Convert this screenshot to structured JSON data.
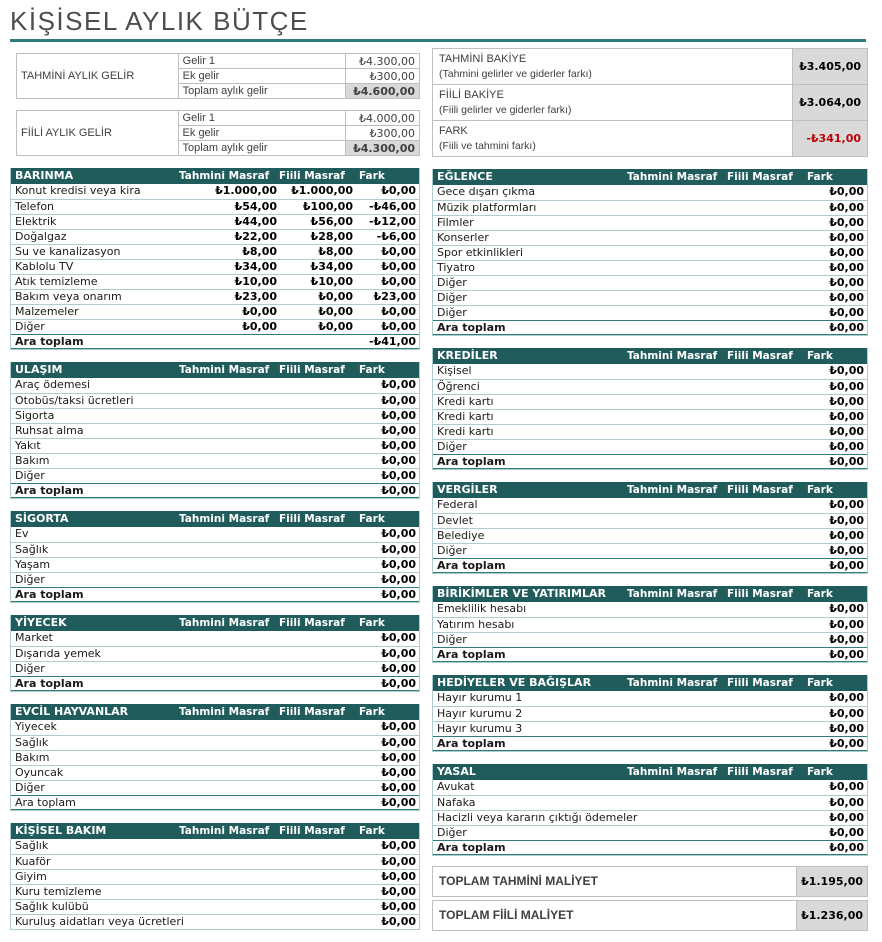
{
  "title": "KİŞİSEL AYLIK BÜTÇE",
  "colors": {
    "header_teal": "#215C5C",
    "accent_teal": "#2E7D7B",
    "row_border": "#AECDD0",
    "total_fill": "#D9D9D9",
    "negative_red": "#C00000"
  },
  "income_tables": [
    {
      "label": "TAHMİNİ AYLIK GELİR",
      "rows": [
        {
          "desc": "Gelir 1",
          "value": "₺4.300,00"
        },
        {
          "desc": "Ek gelir",
          "value": "₺300,00"
        }
      ],
      "total": {
        "desc": "Toplam aylık gelir",
        "value": "₺4.600,00"
      }
    },
    {
      "label": "FİİLİ AYLIK GELİR",
      "rows": [
        {
          "desc": "Gelir 1",
          "value": "₺4.000,00"
        },
        {
          "desc": "Ek gelir",
          "value": "₺300,00"
        }
      ],
      "total": {
        "desc": "Toplam aylık gelir",
        "value": "₺4.300,00"
      }
    }
  ],
  "balance_summary": [
    {
      "title": "TAHMİNİ BAKİYE",
      "subtitle": "(Tahmini gelirler ve giderler farkı)",
      "value": "₺3.405,00",
      "negative": false
    },
    {
      "title": "FİİLİ BAKİYE",
      "subtitle": "(Fiili gelirler ve giderler farkı)",
      "value": "₺3.064,00",
      "negative": false
    },
    {
      "title": "FARK",
      "subtitle": "(Fiili ve tahmini farkı)",
      "value": "-₺341,00",
      "negative": true
    }
  ],
  "expense_columns": {
    "estimated": "Tahmini Masraf",
    "actual": "Fiili Masraf",
    "difference": "Fark"
  },
  "subtotal_label": "Ara toplam",
  "expense_tables_left": [
    {
      "name": "BARINMA",
      "rows": [
        [
          "Konut kredisi veya kira",
          "₺1.000,00",
          "₺1.000,00",
          "₺0,00"
        ],
        [
          "Telefon",
          "₺54,00",
          "₺100,00",
          "-₺46,00"
        ],
        [
          "Elektrik",
          "₺44,00",
          "₺56,00",
          "-₺12,00"
        ],
        [
          "Doğalgaz",
          "₺22,00",
          "₺28,00",
          "-₺6,00"
        ],
        [
          "Su ve kanalizasyon",
          "₺8,00",
          "₺8,00",
          "₺0,00"
        ],
        [
          "Kablolu TV",
          "₺34,00",
          "₺34,00",
          "₺0,00"
        ],
        [
          "Atık temizleme",
          "₺10,00",
          "₺10,00",
          "₺0,00"
        ],
        [
          "Bakım veya onarım",
          "₺23,00",
          "₺0,00",
          "₺23,00"
        ],
        [
          "Malzemeler",
          "₺0,00",
          "₺0,00",
          "₺0,00"
        ],
        [
          "Diğer",
          "₺0,00",
          "₺0,00",
          "₺0,00"
        ]
      ],
      "subtotal": "-₺41,00"
    },
    {
      "name": "ULAŞIM",
      "rows": [
        [
          "Araç ödemesi",
          "",
          "",
          "₺0,00"
        ],
        [
          "Otobüs/taksi ücretleri",
          "",
          "",
          "₺0,00"
        ],
        [
          "Sigorta",
          "",
          "",
          "₺0,00"
        ],
        [
          "Ruhsat alma",
          "",
          "",
          "₺0,00"
        ],
        [
          "Yakıt",
          "",
          "",
          "₺0,00"
        ],
        [
          "Bakım",
          "",
          "",
          "₺0,00"
        ],
        [
          "Diğer",
          "",
          "",
          "₺0,00"
        ]
      ],
      "subtotal": "₺0,00"
    },
    {
      "name": "SİGORTA",
      "rows": [
        [
          "Ev",
          "",
          "",
          "₺0,00"
        ],
        [
          "Sağlık",
          "",
          "",
          "₺0,00"
        ],
        [
          "Yaşam",
          "",
          "",
          "₺0,00"
        ],
        [
          "Diğer",
          "",
          "",
          "₺0,00"
        ]
      ],
      "subtotal": "₺0,00"
    },
    {
      "name": "YİYECEK",
      "rows": [
        [
          "Market",
          "",
          "",
          "₺0,00"
        ],
        [
          "Dışarıda yemek",
          "",
          "",
          "₺0,00"
        ],
        [
          "Diğer",
          "",
          "",
          "₺0,00"
        ]
      ],
      "subtotal": "₺0,00"
    },
    {
      "name": "EVCİL HAYVANLAR",
      "subtotal_label_bold": false,
      "rows": [
        [
          "Yiyecek",
          "",
          "",
          "₺0,00"
        ],
        [
          "Sağlık",
          "",
          "",
          "₺0,00"
        ],
        [
          "Bakım",
          "",
          "",
          "₺0,00"
        ],
        [
          "Oyuncak",
          "",
          "",
          "₺0,00"
        ],
        [
          "Diğer",
          "",
          "",
          "₺0,00"
        ]
      ],
      "subtotal": "₺0,00"
    },
    {
      "name": "KİŞİSEL BAKIM",
      "rows": [
        [
          "Sağlık",
          "",
          "",
          "₺0,00"
        ],
        [
          "Kuaför",
          "",
          "",
          "₺0,00"
        ],
        [
          "Giyim",
          "",
          "",
          "₺0,00"
        ],
        [
          "Kuru temizleme",
          "",
          "",
          "₺0,00"
        ],
        [
          "Sağlık kulübü",
          "",
          "",
          "₺0,00"
        ],
        [
          "Kuruluş aidatları veya ücretleri",
          "",
          "",
          "₺0,00"
        ]
      ],
      "subtotal": null
    }
  ],
  "expense_tables_right": [
    {
      "name": "EĞLENCE",
      "rows": [
        [
          "Gece dışarı çıkma",
          "",
          "",
          "₺0,00"
        ],
        [
          "Müzik platformları",
          "",
          "",
          "₺0,00"
        ],
        [
          "Filmler",
          "",
          "",
          "₺0,00"
        ],
        [
          "Konserler",
          "",
          "",
          "₺0,00"
        ],
        [
          "Spor etkinlikleri",
          "",
          "",
          "₺0,00"
        ],
        [
          "Tiyatro",
          "",
          "",
          "₺0,00"
        ],
        [
          "Diğer",
          "",
          "",
          "₺0,00"
        ],
        [
          "Diğer",
          "",
          "",
          "₺0,00"
        ],
        [
          "Diğer",
          "",
          "",
          "₺0,00"
        ]
      ],
      "subtotal": "₺0,00"
    },
    {
      "name": "KREDİLER",
      "rows": [
        [
          "Kişisel",
          "",
          "",
          "₺0,00"
        ],
        [
          "Öğrenci",
          "",
          "",
          "₺0,00"
        ],
        [
          "Kredi kartı",
          "",
          "",
          "₺0,00"
        ],
        [
          "Kredi kartı",
          "",
          "",
          "₺0,00"
        ],
        [
          "Kredi kartı",
          "",
          "",
          "₺0,00"
        ],
        [
          "Diğer",
          "",
          "",
          "₺0,00"
        ]
      ],
      "subtotal": "₺0,00"
    },
    {
      "name": "VERGİLER",
      "rows": [
        [
          "Federal",
          "",
          "",
          "₺0,00"
        ],
        [
          "Devlet",
          "",
          "",
          "₺0,00"
        ],
        [
          "Belediye",
          "",
          "",
          "₺0,00"
        ],
        [
          "Diğer",
          "",
          "",
          "₺0,00"
        ]
      ],
      "subtotal": "₺0,00"
    },
    {
      "name": "BİRİKİMLER VE YATIRIMLAR",
      "rows": [
        [
          "Emeklilik hesabı",
          "",
          "",
          "₺0,00"
        ],
        [
          "Yatırım hesabı",
          "",
          "",
          "₺0,00"
        ],
        [
          "Diğer",
          "",
          "",
          "₺0,00"
        ]
      ],
      "subtotal": "₺0,00"
    },
    {
      "name": "HEDİYELER VE BAĞIŞLAR",
      "rows": [
        [
          "Hayır kurumu 1",
          "",
          "",
          "₺0,00"
        ],
        [
          "Hayır kurumu 2",
          "",
          "",
          "₺0,00"
        ],
        [
          "Hayır kurumu 3",
          "",
          "",
          "₺0,00"
        ]
      ],
      "subtotal": "₺0,00"
    },
    {
      "name": "YASAL",
      "rows": [
        [
          "Avukat",
          "",
          "",
          "₺0,00"
        ],
        [
          "Nafaka",
          "",
          "",
          "₺0,00"
        ],
        [
          "Hacizli veya kararın çıktığı ödemeler",
          "",
          "",
          "₺0,00"
        ],
        [
          "Diğer",
          "",
          "",
          "₺0,00"
        ]
      ],
      "subtotal": "₺0,00"
    }
  ],
  "totals": [
    {
      "label": "TOPLAM TAHMİNİ MALİYET",
      "value": "₺1.195,00"
    },
    {
      "label": "TOPLAM FİİLİ MALİYET",
      "value": "₺1.236,00"
    }
  ]
}
